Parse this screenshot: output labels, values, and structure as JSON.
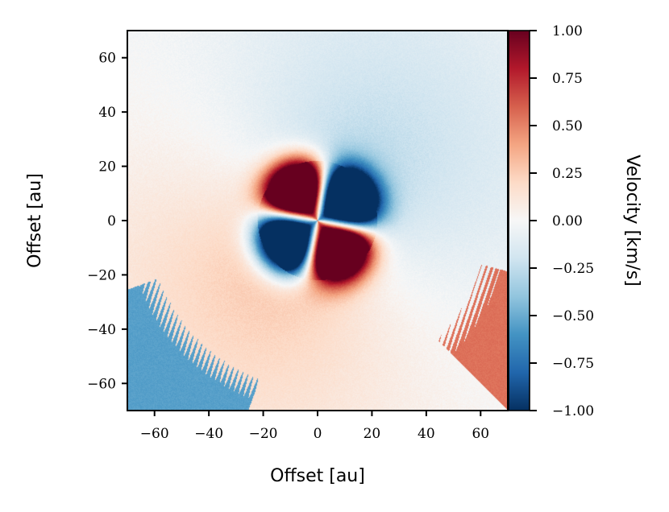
{
  "chart_data": {
    "type": "heatmap",
    "title": "",
    "xlabel": "Offset [au]",
    "ylabel": "Offset [au]",
    "xlim": [
      -70,
      70
    ],
    "ylim": [
      -70,
      70
    ],
    "x_ticks": [
      -60,
      -40,
      -20,
      0,
      20,
      40,
      60
    ],
    "y_ticks": [
      -60,
      -40,
      -20,
      0,
      20,
      40,
      60
    ],
    "colorbar": {
      "label": "Velocity [km/s]",
      "colormap": "RdBu_r",
      "range": [
        -1.0,
        1.0
      ],
      "ticks": [
        -1.0,
        -0.75,
        -0.5,
        -0.25,
        0.0,
        0.25,
        0.5,
        0.75,
        1.0
      ],
      "tick_labels": [
        "−1.00",
        "−0.75",
        "−0.50",
        "−0.25",
        "0.00",
        "0.25",
        "0.50",
        "0.75",
        "1.00"
      ],
      "colors": [
        "#053061",
        "#2166ac",
        "#4393c3",
        "#92c5de",
        "#d1e5f0",
        "#f7f7f7",
        "#fddbc7",
        "#f4a582",
        "#d6604d",
        "#b2182b",
        "#67001f"
      ]
    },
    "features": {
      "red_lobes_au": [
        [
          -12,
          14
        ],
        [
          12,
          -4
        ]
      ],
      "blue_lobes_au": [
        [
          10,
          14
        ],
        [
          -11,
          -5
        ]
      ],
      "lobe_peak_velocity_kms": 1.0
    }
  }
}
